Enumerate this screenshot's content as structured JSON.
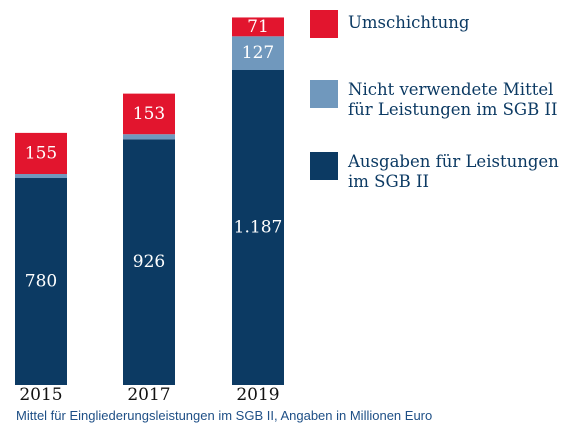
{
  "colors": {
    "umschichtung": "#e2152e",
    "nicht_verwendet": "#7098bd",
    "ausgaben": "#0c3a63"
  },
  "chart_data": {
    "type": "bar",
    "stacked": true,
    "categories": [
      "2015",
      "2017",
      "2019"
    ],
    "series": [
      {
        "name": "Ausgaben für Leistungen im SGB II",
        "values": [
          780,
          926,
          1187
        ],
        "labels": [
          "780",
          "926",
          "1.187"
        ],
        "color": "#0c3a63"
      },
      {
        "name": "Nicht verwendete Mittel für Leistungen im SGB II",
        "values": [
          15,
          19,
          127
        ],
        "labels": [
          "15",
          "19",
          "127"
        ],
        "color": "#7098bd"
      },
      {
        "name": "Umschichtung",
        "values": [
          155,
          153,
          71
        ],
        "labels": [
          "155",
          "153",
          "71"
        ],
        "color": "#e2152e"
      }
    ],
    "legend": [
      {
        "label": "Umschichtung",
        "color": "#e2152e"
      },
      {
        "label": "Nicht verwendete Mittel\nfür Leistungen im SGB II",
        "color": "#7098bd"
      },
      {
        "label": "Ausgaben für Leistungen\nim SGB II",
        "color": "#0c3a63"
      }
    ],
    "caption": "Mittel für Eingliederungsleistungen im SGB II, Angaben in Millionen Euro",
    "legend_position": "right"
  }
}
